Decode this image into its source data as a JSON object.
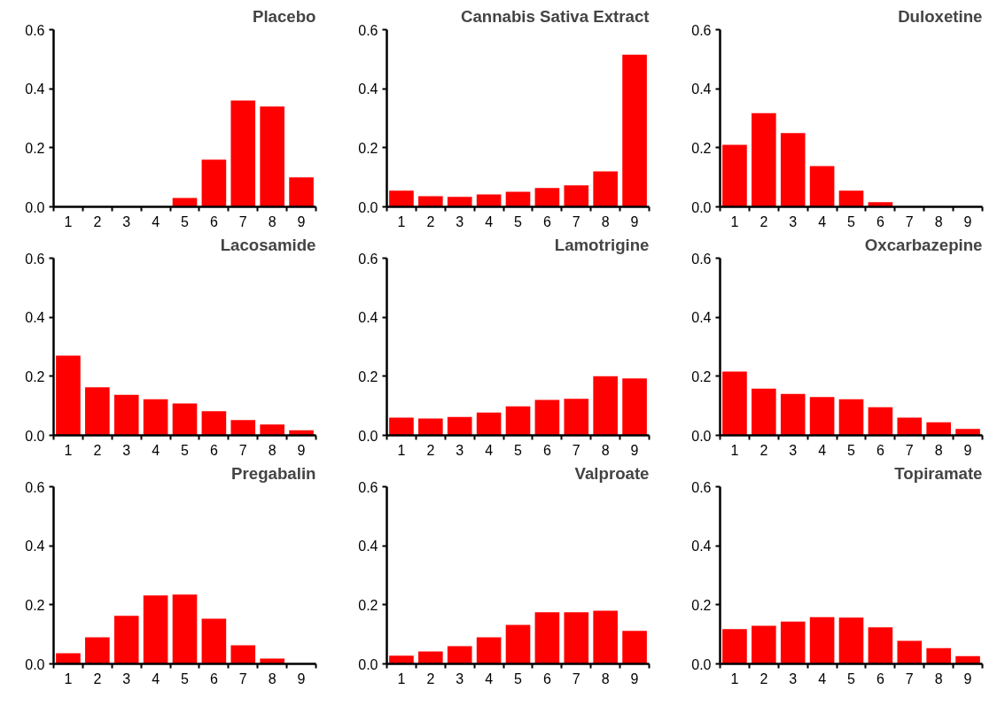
{
  "chart_data": [
    {
      "type": "bar",
      "title": "Placebo",
      "categories": [
        "1",
        "2",
        "3",
        "4",
        "5",
        "6",
        "7",
        "8",
        "9"
      ],
      "values": [
        0,
        0,
        0,
        0,
        0.03,
        0.16,
        0.36,
        0.34,
        0.1
      ],
      "color": "#ff0000",
      "ylim": [
        0,
        0.6
      ],
      "yticks": [
        {
          "value": 0,
          "label": "0.0"
        },
        {
          "value": 0.2,
          "label": "0.2"
        },
        {
          "value": 0.4,
          "label": "0.4"
        },
        {
          "value": 0.6,
          "label": "0.6"
        }
      ],
      "grid": false
    },
    {
      "type": "bar",
      "title": "Cannabis Sativa Extract",
      "categories": [
        "1",
        "2",
        "3",
        "4",
        "5",
        "6",
        "7",
        "8",
        "9"
      ],
      "values": [
        0.055,
        0.036,
        0.034,
        0.042,
        0.051,
        0.064,
        0.073,
        0.12,
        0.515
      ],
      "color": "#ff0000",
      "ylim": [
        0,
        0.6
      ],
      "yticks": [
        {
          "value": 0,
          "label": "0.0"
        },
        {
          "value": 0.2,
          "label": "0.2"
        },
        {
          "value": 0.4,
          "label": "0.4"
        },
        {
          "value": 0.6,
          "label": "0.6"
        }
      ],
      "grid": false
    },
    {
      "type": "bar",
      "title": "Duloxetine",
      "categories": [
        "1",
        "2",
        "3",
        "4",
        "5",
        "6",
        "7",
        "8",
        "9"
      ],
      "values": [
        0.21,
        0.317,
        0.25,
        0.138,
        0.055,
        0.016,
        0,
        0,
        0
      ],
      "color": "#ff0000",
      "ylim": [
        0,
        0.6
      ],
      "yticks": [
        {
          "value": 0,
          "label": "0.0"
        },
        {
          "value": 0.2,
          "label": "0.2"
        },
        {
          "value": 0.4,
          "label": "0.4"
        },
        {
          "value": 0.6,
          "label": "0.6"
        }
      ],
      "grid": false
    },
    {
      "type": "bar",
      "title": "Lacosamide",
      "categories": [
        "1",
        "2",
        "3",
        "4",
        "5",
        "6",
        "7",
        "8",
        "9"
      ],
      "values": [
        0.27,
        0.163,
        0.137,
        0.122,
        0.108,
        0.082,
        0.052,
        0.037,
        0.017
      ],
      "color": "#ff0000",
      "ylim": [
        0,
        0.6
      ],
      "yticks": [
        {
          "value": 0,
          "label": "0.0"
        },
        {
          "value": 0.2,
          "label": "0.2"
        },
        {
          "value": 0.4,
          "label": "0.4"
        },
        {
          "value": 0.6,
          "label": "0.6"
        }
      ],
      "grid": false
    },
    {
      "type": "bar",
      "title": "Lamotrigine",
      "categories": [
        "1",
        "2",
        "3",
        "4",
        "5",
        "6",
        "7",
        "8",
        "9"
      ],
      "values": [
        0.06,
        0.057,
        0.062,
        0.077,
        0.098,
        0.12,
        0.124,
        0.2,
        0.193
      ],
      "color": "#ff0000",
      "ylim": [
        0,
        0.6
      ],
      "yticks": [
        {
          "value": 0,
          "label": "0.0"
        },
        {
          "value": 0.2,
          "label": "0.2"
        },
        {
          "value": 0.4,
          "label": "0.4"
        },
        {
          "value": 0.6,
          "label": "0.6"
        }
      ],
      "grid": false
    },
    {
      "type": "bar",
      "title": "Oxcarbazepine",
      "categories": [
        "1",
        "2",
        "3",
        "4",
        "5",
        "6",
        "7",
        "8",
        "9"
      ],
      "values": [
        0.216,
        0.158,
        0.14,
        0.13,
        0.122,
        0.095,
        0.06,
        0.044,
        0.022
      ],
      "color": "#ff0000",
      "ylim": [
        0,
        0.6
      ],
      "yticks": [
        {
          "value": 0,
          "label": "0.0"
        },
        {
          "value": 0.2,
          "label": "0.2"
        },
        {
          "value": 0.4,
          "label": "0.4"
        },
        {
          "value": 0.6,
          "label": "0.6"
        }
      ],
      "grid": false
    },
    {
      "type": "bar",
      "title": "Pregabalin",
      "categories": [
        "1",
        "2",
        "3",
        "4",
        "5",
        "6",
        "7",
        "8",
        "9"
      ],
      "values": [
        0.036,
        0.09,
        0.163,
        0.232,
        0.235,
        0.153,
        0.063,
        0.018,
        0
      ],
      "color": "#ff0000",
      "ylim": [
        0,
        0.6
      ],
      "yticks": [
        {
          "value": 0,
          "label": "0.0"
        },
        {
          "value": 0.2,
          "label": "0.2"
        },
        {
          "value": 0.4,
          "label": "0.4"
        },
        {
          "value": 0.6,
          "label": "0.6"
        }
      ],
      "grid": false
    },
    {
      "type": "bar",
      "title": "Valproate",
      "categories": [
        "1",
        "2",
        "3",
        "4",
        "5",
        "6",
        "7",
        "8",
        "9"
      ],
      "values": [
        0.028,
        0.042,
        0.06,
        0.09,
        0.132,
        0.175,
        0.175,
        0.18,
        0.112
      ],
      "color": "#ff0000",
      "ylim": [
        0,
        0.6
      ],
      "yticks": [
        {
          "value": 0,
          "label": "0.0"
        },
        {
          "value": 0.2,
          "label": "0.2"
        },
        {
          "value": 0.4,
          "label": "0.4"
        },
        {
          "value": 0.6,
          "label": "0.6"
        }
      ],
      "grid": false
    },
    {
      "type": "bar",
      "title": "Topiramate",
      "categories": [
        "1",
        "2",
        "3",
        "4",
        "5",
        "6",
        "7",
        "8",
        "9"
      ],
      "values": [
        0.118,
        0.129,
        0.143,
        0.158,
        0.157,
        0.124,
        0.078,
        0.053,
        0.026
      ],
      "color": "#ff0000",
      "ylim": [
        0,
        0.6
      ],
      "yticks": [
        {
          "value": 0,
          "label": "0.0"
        },
        {
          "value": 0.2,
          "label": "0.2"
        },
        {
          "value": 0.4,
          "label": "0.4"
        },
        {
          "value": 0.6,
          "label": "0.6"
        }
      ],
      "grid": false
    }
  ]
}
